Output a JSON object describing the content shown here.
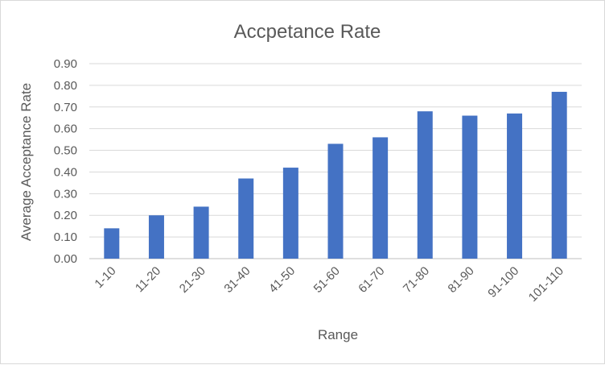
{
  "chart_data": {
    "type": "bar",
    "title": "Accpetance Rate",
    "xlabel": "Range",
    "ylabel": "Average Acceptance Rate",
    "categories": [
      "1-10",
      "11-20",
      "21-30",
      "31-40",
      "41-50",
      "51-60",
      "61-70",
      "71-80",
      "81-90",
      "91-100",
      "101-110"
    ],
    "values": [
      0.14,
      0.2,
      0.24,
      0.37,
      0.42,
      0.53,
      0.56,
      0.68,
      0.66,
      0.67,
      0.77
    ],
    "ylim": [
      0,
      0.9
    ],
    "yticks": [
      "0.00",
      "0.10",
      "0.20",
      "0.30",
      "0.40",
      "0.50",
      "0.60",
      "0.70",
      "0.80",
      "0.90"
    ],
    "grid": true,
    "legend": "none",
    "bar_color": "#4472c4"
  }
}
